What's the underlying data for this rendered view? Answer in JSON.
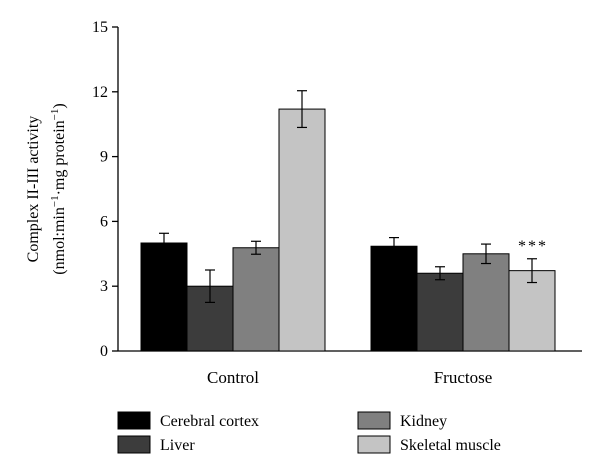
{
  "chart_data": {
    "type": "bar",
    "categories": [
      "Control",
      "Fructose"
    ],
    "series": [
      {
        "name": "Cerebral cortex",
        "color": "#000000",
        "values": [
          5.0,
          4.85
        ],
        "errors": [
          0.45,
          0.4
        ]
      },
      {
        "name": "Liver",
        "color": "#3c3c3c",
        "values": [
          3.0,
          3.6
        ],
        "errors": [
          0.75,
          0.3
        ]
      },
      {
        "name": "Kidney",
        "color": "#808080",
        "values": [
          4.78,
          4.5
        ],
        "errors": [
          0.3,
          0.45
        ]
      },
      {
        "name": "Skeletal muscle",
        "color": "#c4c4c4",
        "values": [
          11.2,
          3.72
        ],
        "errors": [
          0.85,
          0.55
        ]
      }
    ],
    "ylabel_line1": "Complex II-III activity",
    "ylabel_line2_a": "(nmol:min",
    "ylabel_line2_sup1": "−1",
    "ylabel_line2_b": "·mg protein",
    "ylabel_line2_sup2": "−1",
    "ylabel_line2_c": ")",
    "ylim": [
      0,
      15
    ],
    "yticks": [
      0,
      3,
      6,
      9,
      12,
      15
    ],
    "annotations": [
      {
        "category": "Fructose",
        "series": "Skeletal muscle",
        "text": "***"
      }
    ],
    "legend_position": "bottom"
  }
}
